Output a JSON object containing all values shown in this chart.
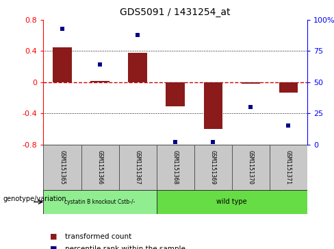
{
  "title": "GDS5091 / 1431254_at",
  "categories": [
    "GSM1151365",
    "GSM1151366",
    "GSM1151367",
    "GSM1151368",
    "GSM1151369",
    "GSM1151370",
    "GSM1151371"
  ],
  "bar_values": [
    0.45,
    0.02,
    0.38,
    -0.31,
    -0.6,
    -0.02,
    -0.13
  ],
  "percentile_values": [
    93,
    64,
    88,
    2,
    2,
    30,
    15
  ],
  "ylim_left": [
    -0.8,
    0.8
  ],
  "ylim_right": [
    0,
    100
  ],
  "bar_color": "#8B1A1A",
  "dot_color": "#00008B",
  "background_color": "#ffffff",
  "hline_color": "#cc0000",
  "group1_label": "cystatin B knockout Cstb-/-",
  "group2_label": "wild type",
  "group1_color": "#90EE90",
  "group2_color": "#66DD44",
  "group1_indices": [
    0,
    1,
    2
  ],
  "group2_indices": [
    3,
    4,
    5,
    6
  ],
  "legend1_label": "transformed count",
  "legend2_label": "percentile rank within the sample",
  "genotype_label": "genotype/variation",
  "yticks_left": [
    -0.8,
    -0.4,
    0.0,
    0.4,
    0.8
  ],
  "yticks_right": [
    0,
    25,
    50,
    75,
    100
  ]
}
